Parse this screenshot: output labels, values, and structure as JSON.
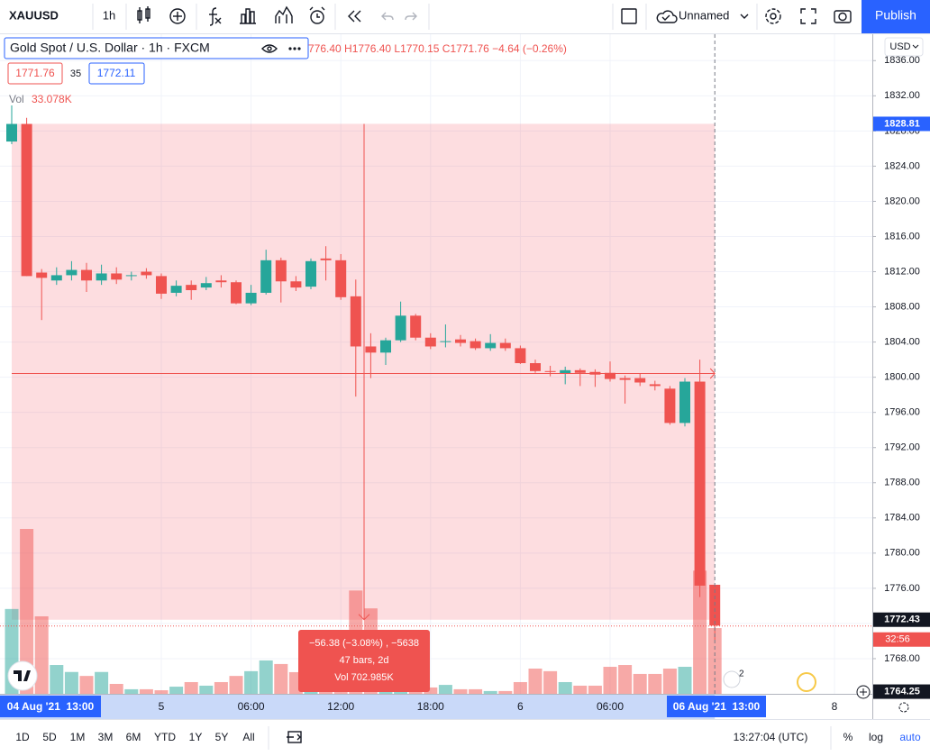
{
  "toolbar": {
    "symbol": "XAUUSD",
    "interval": "1h",
    "layout_name": "Unnamed",
    "publish": "Publish"
  },
  "legend": {
    "title": "Gold Spot / U.S. Dollar · 1h · FXCM",
    "ohlc": "776.40 H1776.40 L1770.15 C1771.76 −4.64 (−0.26%)",
    "bid": "1771.76",
    "spread": "35",
    "ask": "1772.11",
    "vol_label": "Vol",
    "vol_value": "33.078K"
  },
  "measure": {
    "lines": [
      "−56.38 (−3.08%) , −5638",
      "47 bars, 2d",
      "Vol 702.985K"
    ]
  },
  "chart_data": {
    "type": "candlestick",
    "categories": [
      null,
      null,
      null,
      null,
      null,
      null,
      null,
      null,
      null,
      null,
      "5",
      null,
      null,
      null,
      null,
      null,
      "06:00",
      null,
      null,
      null,
      null,
      null,
      "12:00",
      null,
      null,
      null,
      null,
      null,
      "18:00",
      null,
      null,
      null,
      null,
      null,
      "6",
      null,
      null,
      null,
      null,
      null,
      "06:00",
      null,
      null,
      null,
      null,
      null,
      null,
      null
    ],
    "open": [
      1826.8,
      1828.8,
      1811.9,
      1811.0,
      1811.6,
      1812.2,
      1811.0,
      1811.8,
      1811.5,
      1812.0,
      1811.5,
      1809.6,
      1810.5,
      1810.2,
      1811.0,
      1810.8,
      1808.4,
      1809.6,
      1813.3,
      1810.9,
      1810.3,
      1813.5,
      1813.3,
      1809.2,
      1803.5,
      1802.8,
      1804.2,
      1807.0,
      1804.5,
      1804.0,
      1804.3,
      1804.1,
      1803.3,
      1803.9,
      1803.3,
      1801.6,
      1800.7,
      1800.4,
      1800.8,
      1800.6,
      1800.5,
      1799.9,
      1799.9,
      1799.2,
      1798.7,
      1794.8,
      1799.5,
      1776.4
    ],
    "high": [
      1830.9,
      1829.5,
      1812.3,
      1812.5,
      1813.2,
      1813.0,
      1812.8,
      1812.5,
      1812.0,
      1812.4,
      1811.8,
      1811.0,
      1811.0,
      1811.4,
      1811.6,
      1811.0,
      1810.5,
      1814.5,
      1813.6,
      1811.5,
      1813.5,
      1814.9,
      1814.0,
      1811.1,
      1805.0,
      1804.5,
      1808.6,
      1807.2,
      1805.0,
      1806.0,
      1804.8,
      1804.4,
      1804.9,
      1804.4,
      1803.6,
      1802.0,
      1801.3,
      1801.2,
      1801.0,
      1800.9,
      1801.8,
      1800.2,
      1800.4,
      1799.6,
      1799.0,
      1799.9,
      1802.0,
      1776.4
    ],
    "low": [
      1826.5,
      1811.5,
      1806.5,
      1810.5,
      1811.0,
      1809.7,
      1810.5,
      1810.6,
      1811.0,
      1811.2,
      1808.9,
      1809.2,
      1808.8,
      1809.9,
      1810.2,
      1808.3,
      1808.2,
      1809.4,
      1808.5,
      1809.8,
      1810.0,
      1811.0,
      1808.8,
      1797.8,
      1799.9,
      1801.4,
      1804.0,
      1804.2,
      1803.2,
      1803.4,
      1803.5,
      1803.1,
      1803.0,
      1803.0,
      1801.5,
      1800.5,
      1800.1,
      1799.2,
      1799.0,
      1798.9,
      1799.5,
      1797.0,
      1799.0,
      1798.5,
      1794.6,
      1794.4,
      1775.0,
      1770.15
    ],
    "close": [
      1828.8,
      1811.5,
      1811.3,
      1811.6,
      1812.2,
      1811.0,
      1811.8,
      1811.1,
      1811.6,
      1811.6,
      1809.5,
      1810.4,
      1809.9,
      1810.7,
      1810.8,
      1808.4,
      1809.6,
      1813.3,
      1810.9,
      1810.2,
      1813.2,
      1813.3,
      1809.1,
      1803.5,
      1802.8,
      1804.2,
      1807.0,
      1804.5,
      1803.5,
      1804.1,
      1803.9,
      1803.3,
      1803.9,
      1803.3,
      1801.6,
      1800.7,
      1800.6,
      1800.8,
      1800.5,
      1800.3,
      1799.8,
      1799.7,
      1799.4,
      1799.0,
      1794.8,
      1799.5,
      1776.3,
      1771.76
    ],
    "volume": [
      42.7,
      83.0,
      39.0,
      14.5,
      11.0,
      9.0,
      11.0,
      5.0,
      2.3,
      2.3,
      1.8,
      3.6,
      5.9,
      4.1,
      5.9,
      9.0,
      11.4,
      16.8,
      15.0,
      10.9,
      9.0,
      4.5,
      15.9,
      52.0,
      43.0,
      13.6,
      11.4,
      5.9,
      3.2,
      4.5,
      2.3,
      2.3,
      1.4,
      1.4,
      5.9,
      12.7,
      11.4,
      5.9,
      4.1,
      4.1,
      13.6,
      14.5,
      10.0,
      10.0,
      12.7,
      13.6,
      62.0,
      33.078
    ],
    "up_color": "#26a69a",
    "down_color": "#ef5350",
    "ylim": [
      1764,
      1839
    ],
    "yticks": [
      {
        "value": 1836,
        "label": "1836.00"
      },
      {
        "value": 1832,
        "label": "1832.00"
      },
      {
        "value": 1828,
        "label": "1828.00"
      },
      {
        "value": 1824,
        "label": "1824.00"
      },
      {
        "value": 1820,
        "label": "1820.00"
      },
      {
        "value": 1816,
        "label": "1816.00"
      },
      {
        "value": 1812,
        "label": "1812.00"
      },
      {
        "value": 1808,
        "label": "1808.00"
      },
      {
        "value": 1804,
        "label": "1804.00"
      },
      {
        "value": 1800,
        "label": "1800.00"
      },
      {
        "value": 1796,
        "label": "1796.00"
      },
      {
        "value": 1792,
        "label": "1792.00"
      },
      {
        "value": 1788,
        "label": "1788.00"
      },
      {
        "value": 1784,
        "label": "1784.00"
      },
      {
        "value": 1780,
        "label": "1780.00"
      },
      {
        "value": 1776,
        "label": "1776.00"
      },
      {
        "value": 1772,
        "label": "1772.00"
      },
      {
        "value": 1768,
        "label": "1768.00"
      }
    ],
    "grid": true,
    "currency": "USD",
    "price_badges": [
      {
        "value": 1828.81,
        "color": "#2962ff"
      },
      {
        "value": 1772.43,
        "color": "#131722"
      },
      {
        "value": 1764.25,
        "color": "#131722"
      }
    ],
    "countdown": "32:56",
    "time_axis": {
      "start_label": "04 Aug '21  13:00",
      "end_label": "06 Aug '21  13:00",
      "future_label": "8"
    },
    "event_badge": "2"
  },
  "bottom_bar": {
    "ranges": [
      "1D",
      "5D",
      "1M",
      "3M",
      "6M",
      "YTD",
      "1Y",
      "5Y",
      "All"
    ],
    "clock": "13:27:04 (UTC)",
    "percent": "%",
    "log": "log",
    "auto": "auto"
  }
}
